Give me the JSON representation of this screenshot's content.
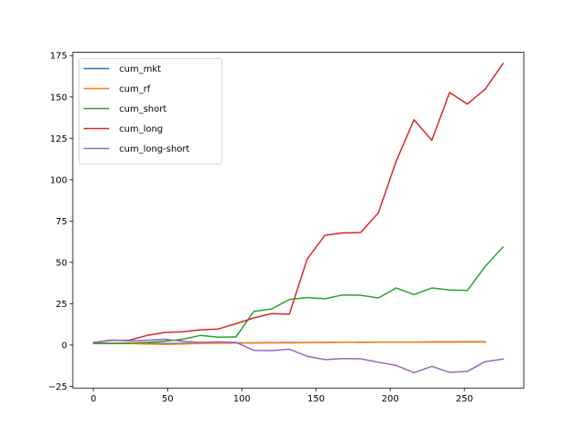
{
  "chart_data": {
    "type": "line",
    "title": "",
    "xlabel": "",
    "ylabel": "",
    "xlim": [
      -14,
      290
    ],
    "ylim": [
      -26,
      177
    ],
    "xticks": [
      0,
      50,
      100,
      150,
      200,
      250
    ],
    "yticks": [
      -25,
      0,
      25,
      50,
      75,
      100,
      125,
      150,
      175
    ],
    "grid": false,
    "legend_position": "top-left",
    "series": [
      {
        "name": "cum_mkt",
        "color": "#1f77b4",
        "x": [
          0,
          12,
          24,
          36,
          48,
          60,
          72,
          84,
          96,
          108,
          120,
          132,
          144,
          156,
          168,
          180,
          192,
          204,
          216,
          228,
          240,
          252,
          264
        ],
        "y": [
          1.0,
          1.1,
          1.0,
          1.0,
          0.9,
          1.0,
          1.1,
          1.2,
          1.3,
          1.3,
          1.4,
          1.5,
          1.5,
          1.6,
          1.7,
          1.7,
          1.8,
          1.8,
          1.8,
          1.9,
          1.9,
          2.0,
          2.0
        ]
      },
      {
        "name": "cum_rf",
        "color": "#ff7f0e",
        "x": [
          0,
          12,
          24,
          36,
          48,
          60,
          72,
          84,
          96,
          108,
          120,
          132,
          144,
          156,
          168,
          180,
          192,
          204,
          216,
          228,
          240,
          252,
          264
        ],
        "y": [
          1.0,
          1.0,
          0.9,
          0.6,
          0.4,
          0.6,
          1.0,
          1.1,
          1.2,
          1.3,
          1.3,
          1.3,
          1.4,
          1.4,
          1.8,
          1.6,
          1.7,
          1.7,
          1.7,
          1.8,
          1.8,
          1.8,
          1.8
        ]
      },
      {
        "name": "cum_short",
        "color": "#2ca02c",
        "x": [
          0,
          12,
          24,
          36,
          48,
          60,
          72,
          84,
          96,
          108,
          120,
          132,
          144,
          156,
          168,
          180,
          192,
          204,
          216,
          228,
          240,
          252,
          264,
          276
        ],
        "y": [
          1.0,
          1.0,
          1.2,
          1.6,
          2.3,
          3.5,
          5.8,
          4.7,
          4.9,
          20.3,
          21.8,
          27.6,
          28.7,
          28.0,
          30.3,
          30.1,
          28.5,
          34.5,
          30.5,
          34.5,
          33.3,
          33.0,
          47.6,
          59.3
        ]
      },
      {
        "name": "cum_long",
        "color": "#d62728",
        "x": [
          0,
          12,
          24,
          36,
          48,
          60,
          72,
          84,
          96,
          108,
          120,
          132,
          144,
          156,
          168,
          180,
          192,
          204,
          216,
          228,
          240,
          252,
          264,
          276
        ],
        "y": [
          1.5,
          2.9,
          2.9,
          5.8,
          7.6,
          8.0,
          9.2,
          9.7,
          12.9,
          16.4,
          19.0,
          18.7,
          52.0,
          66.4,
          67.8,
          68.0,
          80.0,
          111.2,
          136.2,
          123.8,
          152.7,
          145.7,
          154.8,
          170.2
        ]
      },
      {
        "name": "cum_long-short",
        "color": "#9467bd",
        "x": [
          0,
          12,
          24,
          36,
          48,
          60,
          72,
          84,
          96,
          108,
          120,
          132,
          144,
          156,
          168,
          180,
          192,
          204,
          216,
          228,
          240,
          252,
          264,
          276
        ],
        "y": [
          1.5,
          3.0,
          2.5,
          2.9,
          3.5,
          2.3,
          1.6,
          1.9,
          1.6,
          -3.2,
          -3.4,
          -2.5,
          -6.8,
          -8.8,
          -8.2,
          -8.3,
          -10.4,
          -12.3,
          -16.7,
          -12.9,
          -16.5,
          -15.9,
          -10.0,
          -8.5
        ]
      }
    ]
  }
}
